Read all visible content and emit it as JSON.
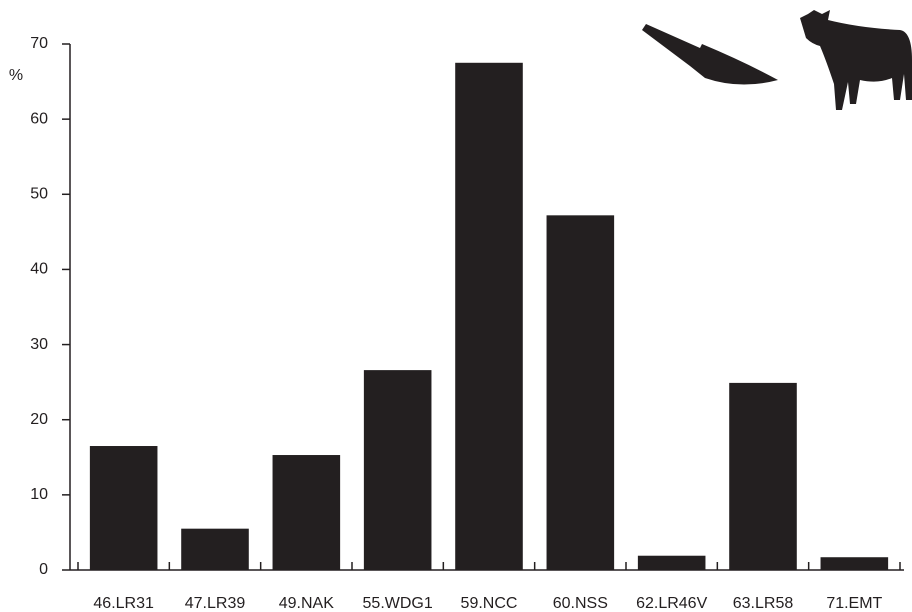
{
  "chart_data": {
    "type": "bar",
    "y_label": "%",
    "categories": [
      "46.LR31",
      "47.LR39",
      "49.NAK",
      "55.WDG1",
      "59.NCC",
      "60.NSS",
      "62.LR46V",
      "63.LR58",
      "71.EMT"
    ],
    "values": [
      16.5,
      5.5,
      15.3,
      26.6,
      67.5,
      47.2,
      1.9,
      24.9,
      1.7
    ],
    "color": "#231f20",
    "ylim": [
      0,
      70
    ],
    "yticks": [
      0,
      10,
      20,
      30,
      40,
      50,
      60,
      70
    ],
    "grid": false
  }
}
